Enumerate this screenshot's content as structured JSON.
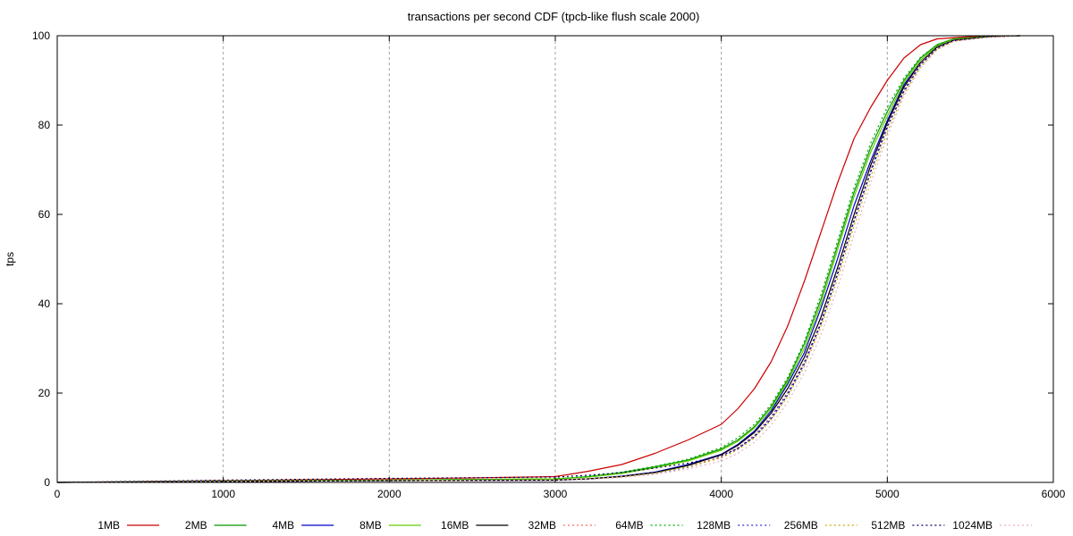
{
  "chart_data": {
    "type": "line",
    "title": "transactions per second CDF (tpcb-like flush scale 2000)",
    "xlabel": "",
    "ylabel": "tps",
    "xlim": [
      0,
      6000
    ],
    "ylim": [
      0,
      100
    ],
    "xticks": [
      0,
      1000,
      2000,
      3000,
      4000,
      5000,
      6000
    ],
    "yticks": [
      0,
      20,
      40,
      60,
      80,
      100
    ],
    "grid": "vertical dashed",
    "legend_position": "bottom",
    "series": [
      {
        "name": "1MB",
        "color": "#cc0000",
        "dash": "solid",
        "points": [
          [
            0,
            0
          ],
          [
            500,
            0.2
          ],
          [
            1000,
            0.4
          ],
          [
            1500,
            0.6
          ],
          [
            2000,
            0.8
          ],
          [
            2500,
            1
          ],
          [
            3000,
            1.3
          ],
          [
            3200,
            2.5
          ],
          [
            3400,
            4
          ],
          [
            3600,
            6.5
          ],
          [
            3800,
            9.5
          ],
          [
            4000,
            13
          ],
          [
            4100,
            16.5
          ],
          [
            4200,
            21
          ],
          [
            4300,
            27
          ],
          [
            4400,
            35
          ],
          [
            4500,
            45
          ],
          [
            4600,
            56
          ],
          [
            4700,
            67
          ],
          [
            4800,
            77
          ],
          [
            4900,
            84
          ],
          [
            5000,
            90
          ],
          [
            5100,
            95
          ],
          [
            5200,
            98
          ],
          [
            5300,
            99.3
          ],
          [
            5500,
            99.8
          ],
          [
            5800,
            100
          ]
        ]
      },
      {
        "name": "2MB",
        "color": "#009900",
        "dash": "solid",
        "points": [
          [
            0,
            0
          ],
          [
            1000,
            0.3
          ],
          [
            2000,
            0.5
          ],
          [
            3000,
            0.8
          ],
          [
            3200,
            1.3
          ],
          [
            3400,
            2.2
          ],
          [
            3600,
            3.5
          ],
          [
            3800,
            5
          ],
          [
            4000,
            7.5
          ],
          [
            4100,
            9.5
          ],
          [
            4200,
            12.5
          ],
          [
            4300,
            17
          ],
          [
            4400,
            23
          ],
          [
            4500,
            31
          ],
          [
            4600,
            41
          ],
          [
            4700,
            53
          ],
          [
            4800,
            65
          ],
          [
            4900,
            75
          ],
          [
            5000,
            83
          ],
          [
            5100,
            90
          ],
          [
            5200,
            95
          ],
          [
            5300,
            98
          ],
          [
            5400,
            99.3
          ],
          [
            5600,
            99.8
          ],
          [
            5800,
            100
          ]
        ]
      },
      {
        "name": "4MB",
        "color": "#0000cc",
        "dash": "solid",
        "points": [
          [
            0,
            0
          ],
          [
            1000,
            0.2
          ],
          [
            2000,
            0.4
          ],
          [
            3000,
            0.5
          ],
          [
            3200,
            0.8
          ],
          [
            3400,
            1.4
          ],
          [
            3600,
            2.3
          ],
          [
            3800,
            4
          ],
          [
            4000,
            6.3
          ],
          [
            4100,
            8.5
          ],
          [
            4200,
            11.5
          ],
          [
            4300,
            16
          ],
          [
            4400,
            22
          ],
          [
            4500,
            29
          ],
          [
            4600,
            39
          ],
          [
            4700,
            50
          ],
          [
            4800,
            62
          ],
          [
            4900,
            72
          ],
          [
            5000,
            81
          ],
          [
            5100,
            89
          ],
          [
            5200,
            94
          ],
          [
            5300,
            97.5
          ],
          [
            5400,
            99
          ],
          [
            5600,
            99.8
          ],
          [
            5800,
            100
          ]
        ]
      },
      {
        "name": "8MB",
        "color": "#66cc00",
        "dash": "solid",
        "points": [
          [
            0,
            0
          ],
          [
            1000,
            0.3
          ],
          [
            2000,
            0.5
          ],
          [
            3000,
            0.8
          ],
          [
            3200,
            1.2
          ],
          [
            3400,
            2
          ],
          [
            3600,
            3.3
          ],
          [
            3800,
            4.8
          ],
          [
            4000,
            7.2
          ],
          [
            4100,
            9.2
          ],
          [
            4200,
            12.2
          ],
          [
            4300,
            16.5
          ],
          [
            4400,
            22.5
          ],
          [
            4500,
            30
          ],
          [
            4600,
            40
          ],
          [
            4700,
            52
          ],
          [
            4800,
            64
          ],
          [
            4900,
            74
          ],
          [
            5000,
            82
          ],
          [
            5100,
            89.5
          ],
          [
            5200,
            94.5
          ],
          [
            5300,
            97.8
          ],
          [
            5400,
            99.2
          ],
          [
            5600,
            99.8
          ],
          [
            5800,
            100
          ]
        ]
      },
      {
        "name": "16MB",
        "color": "#000000",
        "dash": "solid",
        "points": [
          [
            0,
            0
          ],
          [
            1000,
            0.2
          ],
          [
            2000,
            0.4
          ],
          [
            3000,
            0.5
          ],
          [
            3200,
            0.8
          ],
          [
            3400,
            1.3
          ],
          [
            3600,
            2.2
          ],
          [
            3800,
            3.8
          ],
          [
            4000,
            6.2
          ],
          [
            4100,
            8.3
          ],
          [
            4200,
            11.2
          ],
          [
            4300,
            15.5
          ],
          [
            4400,
            21
          ],
          [
            4500,
            28
          ],
          [
            4600,
            37
          ],
          [
            4700,
            48
          ],
          [
            4800,
            60
          ],
          [
            4900,
            71
          ],
          [
            5000,
            80.5
          ],
          [
            5100,
            88.5
          ],
          [
            5200,
            94
          ],
          [
            5300,
            97.5
          ],
          [
            5400,
            99
          ],
          [
            5600,
            99.8
          ],
          [
            5800,
            100
          ]
        ]
      },
      {
        "name": "32MB",
        "color": "#ff6666",
        "dash": "dotted",
        "points": [
          [
            0,
            0
          ],
          [
            1000,
            0.2
          ],
          [
            2000,
            0.4
          ],
          [
            3000,
            0.5
          ],
          [
            3200,
            0.7
          ],
          [
            3400,
            1.2
          ],
          [
            3600,
            2
          ],
          [
            3800,
            3.5
          ],
          [
            4000,
            5.8
          ],
          [
            4100,
            7.8
          ],
          [
            4200,
            10.6
          ],
          [
            4300,
            14.8
          ],
          [
            4400,
            20.2
          ],
          [
            4500,
            27
          ],
          [
            4600,
            36
          ],
          [
            4700,
            47
          ],
          [
            4800,
            59
          ],
          [
            4900,
            70
          ],
          [
            5000,
            80
          ],
          [
            5100,
            88
          ],
          [
            5200,
            93.8
          ],
          [
            5300,
            97.3
          ],
          [
            5400,
            99
          ],
          [
            5600,
            99.8
          ],
          [
            5800,
            100
          ]
        ]
      },
      {
        "name": "64MB",
        "color": "#00aa00",
        "dash": "dotted",
        "points": [
          [
            0,
            0
          ],
          [
            1000,
            0.3
          ],
          [
            2000,
            0.5
          ],
          [
            3000,
            0.8
          ],
          [
            3200,
            1.3
          ],
          [
            3400,
            2.3
          ],
          [
            3600,
            3.6
          ],
          [
            3800,
            5.2
          ],
          [
            4000,
            7.8
          ],
          [
            4100,
            10
          ],
          [
            4200,
            13
          ],
          [
            4300,
            17.5
          ],
          [
            4400,
            23.5
          ],
          [
            4500,
            31.5
          ],
          [
            4600,
            42
          ],
          [
            4700,
            54
          ],
          [
            4800,
            66
          ],
          [
            4900,
            76
          ],
          [
            5000,
            84
          ],
          [
            5100,
            90.5
          ],
          [
            5200,
            95.2
          ],
          [
            5300,
            98
          ],
          [
            5400,
            99.3
          ],
          [
            5600,
            99.8
          ],
          [
            5800,
            100
          ]
        ]
      },
      {
        "name": "128MB",
        "color": "#3333cc",
        "dash": "dotted",
        "points": [
          [
            0,
            0
          ],
          [
            1000,
            0.2
          ],
          [
            2000,
            0.4
          ],
          [
            3000,
            0.5
          ],
          [
            3200,
            0.7
          ],
          [
            3400,
            1.2
          ],
          [
            3600,
            2
          ],
          [
            3800,
            3.4
          ],
          [
            4000,
            5.6
          ],
          [
            4100,
            7.6
          ],
          [
            4200,
            10.4
          ],
          [
            4300,
            14.6
          ],
          [
            4400,
            20
          ],
          [
            4500,
            26.8
          ],
          [
            4600,
            35.8
          ],
          [
            4700,
            46.8
          ],
          [
            4800,
            58.8
          ],
          [
            4900,
            69.8
          ],
          [
            5000,
            79.8
          ],
          [
            5100,
            87.8
          ],
          [
            5200,
            93.6
          ],
          [
            5300,
            97.2
          ],
          [
            5400,
            98.9
          ],
          [
            5600,
            99.7
          ],
          [
            5800,
            100
          ]
        ]
      },
      {
        "name": "256MB",
        "color": "#ccaa00",
        "dash": "dotted",
        "points": [
          [
            0,
            0
          ],
          [
            1000,
            0.2
          ],
          [
            2000,
            0.4
          ],
          [
            3000,
            0.6
          ],
          [
            3200,
            0.8
          ],
          [
            3400,
            1.3
          ],
          [
            3600,
            2.1
          ],
          [
            3800,
            3.5
          ],
          [
            4000,
            5.5
          ],
          [
            4100,
            7.3
          ],
          [
            4200,
            10
          ],
          [
            4300,
            14
          ],
          [
            4400,
            19.2
          ],
          [
            4500,
            26
          ],
          [
            4600,
            34.8
          ],
          [
            4700,
            45.5
          ],
          [
            4800,
            57.5
          ],
          [
            4900,
            68.5
          ],
          [
            5000,
            78.5
          ],
          [
            5100,
            87
          ],
          [
            5200,
            93
          ],
          [
            5300,
            97
          ],
          [
            5400,
            98.8
          ],
          [
            5600,
            99.7
          ],
          [
            5800,
            100
          ]
        ]
      },
      {
        "name": "512MB",
        "color": "#000066",
        "dash": "dotted",
        "points": [
          [
            0,
            0
          ],
          [
            1000,
            0.5
          ],
          [
            2000,
            0.9
          ],
          [
            3000,
            1.2
          ],
          [
            3200,
            1.6
          ],
          [
            3400,
            2.2
          ],
          [
            3600,
            3.2
          ],
          [
            3800,
            4.3
          ],
          [
            4000,
            6
          ],
          [
            4100,
            7.6
          ],
          [
            4200,
            10.2
          ],
          [
            4300,
            14.2
          ],
          [
            4400,
            19.6
          ],
          [
            4500,
            26.5
          ],
          [
            4600,
            35.5
          ],
          [
            4700,
            46.5
          ],
          [
            4800,
            58.5
          ],
          [
            4900,
            69.5
          ],
          [
            5000,
            79.5
          ],
          [
            5100,
            87.5
          ],
          [
            5200,
            93.5
          ],
          [
            5300,
            97.2
          ],
          [
            5400,
            98.9
          ],
          [
            5600,
            99.7
          ],
          [
            5800,
            100
          ]
        ]
      },
      {
        "name": "1024MB",
        "color": "#e6b0c0",
        "dash": "dotted",
        "points": [
          [
            0,
            0
          ],
          [
            1000,
            0.2
          ],
          [
            2000,
            0.4
          ],
          [
            3000,
            0.5
          ],
          [
            3200,
            0.7
          ],
          [
            3400,
            1.1
          ],
          [
            3600,
            1.8
          ],
          [
            3800,
            3
          ],
          [
            4000,
            4.8
          ],
          [
            4100,
            6.5
          ],
          [
            4200,
            9
          ],
          [
            4300,
            12.8
          ],
          [
            4400,
            18
          ],
          [
            4500,
            24.5
          ],
          [
            4600,
            33
          ],
          [
            4700,
            43.5
          ],
          [
            4800,
            55.5
          ],
          [
            4900,
            67
          ],
          [
            5000,
            77.5
          ],
          [
            5100,
            86.5
          ],
          [
            5200,
            92.8
          ],
          [
            5300,
            96.8
          ],
          [
            5400,
            98.7
          ],
          [
            5600,
            99.6
          ],
          [
            5800,
            100
          ]
        ]
      }
    ]
  }
}
